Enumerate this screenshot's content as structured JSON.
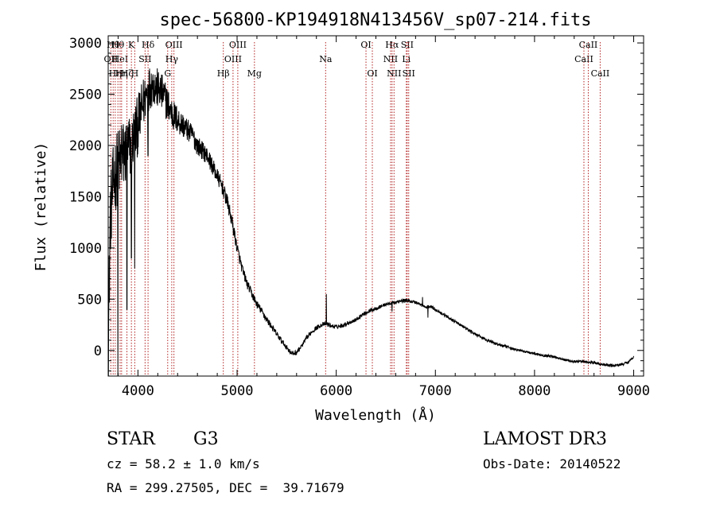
{
  "chart_data": {
    "type": "line",
    "title": "spec-56800-KP194918N413456V_sp07-214.fits",
    "xlabel": "Wavelength (Å)",
    "ylabel": "Flux (relative)",
    "xlim": [
      3700,
      9100
    ],
    "ylim": [
      -250,
      3070
    ],
    "xticks": [
      4000,
      5000,
      6000,
      7000,
      8000,
      9000
    ],
    "yticks": [
      0,
      500,
      1000,
      1500,
      2000,
      2500,
      3000
    ],
    "spectrum_anchors": {
      "x": [
        3700,
        3720,
        3760,
        3800,
        3850,
        3900,
        3950,
        4000,
        4050,
        4100,
        4150,
        4200,
        4250,
        4300,
        4350,
        4400,
        4450,
        4500,
        4550,
        4600,
        4650,
        4700,
        4750,
        4800,
        4850,
        4900,
        4950,
        5000,
        5050,
        5100,
        5150,
        5200,
        5250,
        5300,
        5350,
        5400,
        5450,
        5500,
        5550,
        5600,
        5650,
        5700,
        5750,
        5800,
        5850,
        5900,
        5950,
        6000,
        6050,
        6100,
        6150,
        6200,
        6250,
        6300,
        6350,
        6400,
        6450,
        6500,
        6550,
        6600,
        6650,
        6700,
        6750,
        6800,
        6850,
        6900,
        6950,
        7000,
        7050,
        7100,
        7200,
        7300,
        7400,
        7500,
        7600,
        7700,
        7800,
        7900,
        8000,
        8100,
        8200,
        8300,
        8400,
        8500,
        8600,
        8700,
        8800,
        8900,
        8950,
        9000
      ],
      "y": [
        -100,
        1300,
        1700,
        1800,
        1900,
        1950,
        2050,
        2200,
        2400,
        2550,
        2600,
        2550,
        2500,
        2400,
        2300,
        2250,
        2200,
        2150,
        2100,
        2000,
        1950,
        1900,
        1800,
        1700,
        1600,
        1450,
        1250,
        1000,
        800,
        650,
        550,
        450,
        380,
        300,
        230,
        160,
        90,
        30,
        -30,
        -20,
        40,
        120,
        180,
        220,
        250,
        260,
        240,
        230,
        240,
        260,
        280,
        300,
        340,
        370,
        390,
        410,
        430,
        450,
        460,
        470,
        480,
        490,
        480,
        470,
        450,
        420,
        430,
        400,
        370,
        340,
        280,
        220,
        160,
        110,
        70,
        40,
        10,
        -10,
        -30,
        -50,
        -60,
        -90,
        -110,
        -110,
        -120,
        -140,
        -150,
        -130,
        -110,
        -60
      ]
    },
    "noise_amplitude": {
      "x": [
        3700,
        3800,
        3950,
        4100,
        4300,
        4500,
        4700,
        4900,
        5100,
        5500,
        6000,
        7000,
        8000,
        9000
      ],
      "amp": [
        800,
        750,
        650,
        450,
        350,
        220,
        170,
        150,
        90,
        50,
        40,
        30,
        25,
        25
      ]
    },
    "spikes": [
      {
        "x": 3797,
        "y": -250
      },
      {
        "x": 3835,
        "y": 2200
      },
      {
        "x": 3889,
        "y": 400
      },
      {
        "x": 3934,
        "y": 900
      },
      {
        "x": 3968,
        "y": 800
      },
      {
        "x": 4101,
        "y": 1900
      },
      {
        "x": 5900,
        "y": 550
      },
      {
        "x": 6300,
        "y": 350
      },
      {
        "x": 6563,
        "y": 380
      },
      {
        "x": 6870,
        "y": 520
      },
      {
        "x": 6925,
        "y": 320
      }
    ],
    "reference_lines": [
      {
        "x": 3727,
        "label": "OII",
        "row": 2
      },
      {
        "x": 3750,
        "label": "Hθ",
        "row": 1
      },
      {
        "x": 3771,
        "label": "Hη",
        "row": 3
      },
      {
        "x": 3798,
        "label": "Hθ",
        "row": 1
      },
      {
        "x": 3820,
        "label": "HeI",
        "row": 2
      },
      {
        "x": 3835,
        "label": "Hη",
        "row": 3
      },
      {
        "x": 3889,
        "label": "Hζ",
        "row": 3
      },
      {
        "x": 3934,
        "label": "K",
        "row": 1
      },
      {
        "x": 3968,
        "label": "H",
        "row": 3
      },
      {
        "x": 4072,
        "label": "SII",
        "row": 2
      },
      {
        "x": 4102,
        "label": "Hδ",
        "row": 1
      },
      {
        "x": 4300,
        "label": "G",
        "row": 3
      },
      {
        "x": 4341,
        "label": "Hγ",
        "row": 2
      },
      {
        "x": 4363,
        "label": "OIII",
        "row": 1
      },
      {
        "x": 4861,
        "label": "Hβ",
        "row": 3
      },
      {
        "x": 4959,
        "label": "OIII",
        "row": 2
      },
      {
        "x": 5007,
        "label": "OIII",
        "row": 1
      },
      {
        "x": 5175,
        "label": "Mg",
        "row": 3
      },
      {
        "x": 5893,
        "label": "Na",
        "row": 2
      },
      {
        "x": 6300,
        "label": "OI",
        "row": 1
      },
      {
        "x": 6364,
        "label": "OI",
        "row": 3
      },
      {
        "x": 6548,
        "label": "NII",
        "row": 2
      },
      {
        "x": 6563,
        "label": "Hα",
        "row": 1
      },
      {
        "x": 6583,
        "label": "NII",
        "row": 3
      },
      {
        "x": 6707,
        "label": "Li",
        "row": 2
      },
      {
        "x": 6716,
        "label": "SII",
        "row": 1
      },
      {
        "x": 6731,
        "label": "SII",
        "row": 3
      },
      {
        "x": 8498,
        "label": "CaII",
        "row": 2
      },
      {
        "x": 8542,
        "label": "CaII",
        "row": 1
      },
      {
        "x": 8662,
        "label": "CaII",
        "row": 3
      }
    ]
  },
  "info": {
    "object_class": "STAR",
    "subclass": "G3",
    "survey": "LAMOST DR3",
    "redshift": "cz = 58.2 ± 1.0 km/s",
    "obs_date": "Obs-Date: 20140522",
    "coords": "RA = 299.27505, DEC =  39.71679"
  },
  "colors": {
    "line_marker": "#b22222",
    "spectrum": "#000000",
    "background": "#ffffff"
  }
}
